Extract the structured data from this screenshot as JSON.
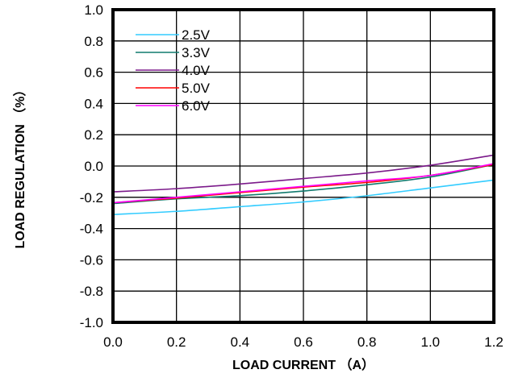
{
  "chart_data": {
    "type": "line",
    "title": "",
    "xlabel": "LOAD CURRENT （A）",
    "ylabel": "LOAD REGULATION （%）",
    "xlim": [
      0.0,
      1.2
    ],
    "ylim": [
      -1.0,
      1.0
    ],
    "x_ticks": [
      "0.0",
      "0.2",
      "0.4",
      "0.6",
      "0.8",
      "1.0",
      "1.2"
    ],
    "y_ticks": [
      "1.0",
      "0.8",
      "0.6",
      "0.4",
      "0.2",
      "0.0",
      "-0.2",
      "-0.4",
      "-0.6",
      "-0.8",
      "-1.0"
    ],
    "grid": true,
    "legend_position": "top-left",
    "x": [
      0.0,
      0.2,
      0.4,
      0.6,
      0.8,
      1.0,
      1.2
    ],
    "series": [
      {
        "name": "2.5V",
        "color": "#33ccff",
        "values": [
          -0.31,
          -0.29,
          -0.26,
          -0.23,
          -0.19,
          -0.14,
          -0.09
        ]
      },
      {
        "name": "3.3V",
        "color": "#117a6e",
        "values": [
          -0.24,
          -0.21,
          -0.19,
          -0.16,
          -0.12,
          -0.07,
          0.01
        ]
      },
      {
        "name": "4.0V",
        "color": "#7b1a8a",
        "values": [
          -0.165,
          -0.145,
          -0.115,
          -0.08,
          -0.045,
          0.005,
          0.07
        ]
      },
      {
        "name": "5.0V",
        "color": "#ff0000",
        "values": [
          -0.235,
          -0.205,
          -0.17,
          -0.135,
          -0.105,
          -0.06,
          0.01
        ]
      },
      {
        "name": "6.0V",
        "color": "#ff00ff",
        "values": [
          -0.235,
          -0.2,
          -0.165,
          -0.13,
          -0.095,
          -0.06,
          0.015
        ]
      }
    ]
  }
}
